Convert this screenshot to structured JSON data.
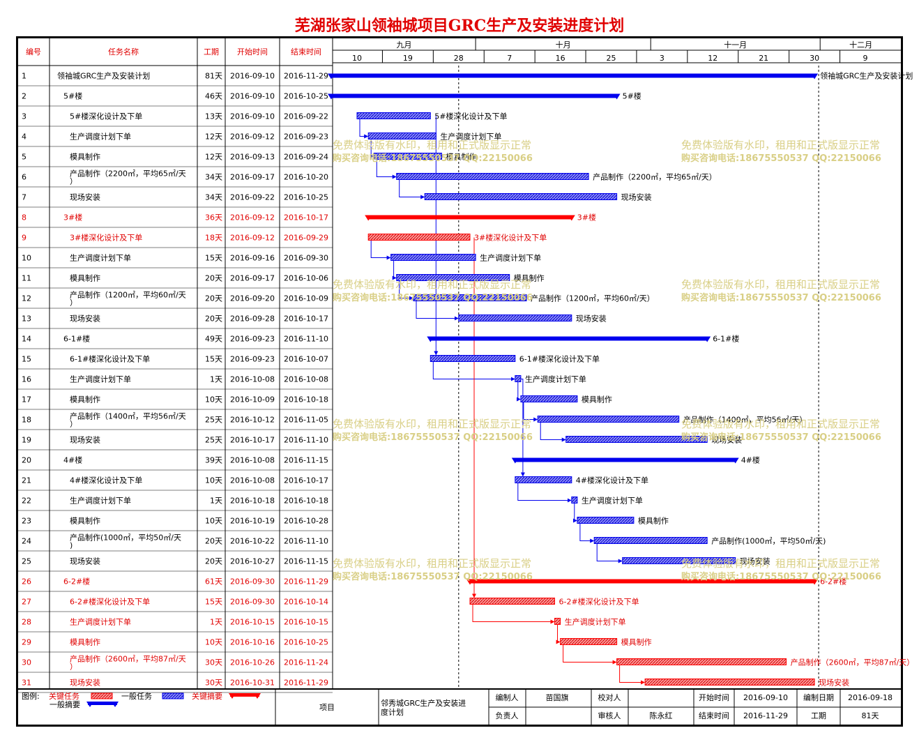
{
  "title": "芜湖张家山领袖城项目GRC生产及安装进度计划",
  "table_headers": {
    "id": "编号",
    "name": "任务名称",
    "duration": "工期",
    "start": "开始时间",
    "end": "结束时间"
  },
  "timeline": {
    "months": [
      "九月",
      "十月",
      "十一月",
      "十二月"
    ],
    "days": [
      "10",
      "19",
      "28",
      "7",
      "16",
      "25",
      "3",
      "12",
      "21",
      "30",
      "9"
    ]
  },
  "watermark": {
    "line1": "免费体验版有水印，租用和正式版显示正常",
    "line2": "购买咨询电话:18675550537 QQ:22150066"
  },
  "colors": {
    "critical": "#ff0000",
    "normal": "#0000ee",
    "critical_text": "#e00000"
  },
  "chart_data": {
    "type": "gantt",
    "title": "芜湖张家山领袖城项目GRC生产及安装进度计划",
    "x_range": [
      "2016-09-06",
      "2016-12-14"
    ],
    "today_marker": "2016-09-28",
    "tasks": [
      {
        "id": "1",
        "name": "领袖城GRC生产及安装计划",
        "duration": "81天",
        "start": "2016-09-10",
        "end": "2016-11-29",
        "level": 0,
        "kind": "summary",
        "critical": false,
        "label": "领袖城GRC生产及安装计划"
      },
      {
        "id": "2",
        "name": "5#楼",
        "duration": "46天",
        "start": "2016-09-10",
        "end": "2016-10-25",
        "level": 1,
        "kind": "summary",
        "critical": false,
        "label": "5#楼"
      },
      {
        "id": "3",
        "name": "5#楼深化设计及下单",
        "duration": "13天",
        "start": "2016-09-10",
        "end": "2016-09-22",
        "level": 2,
        "kind": "task",
        "critical": false,
        "label": "5#楼深化设计及下单"
      },
      {
        "id": "4",
        "name": "生产调度计划下单",
        "duration": "12天",
        "start": "2016-09-12",
        "end": "2016-09-23",
        "level": 2,
        "kind": "task",
        "critical": false,
        "label": "生产调度计划下单"
      },
      {
        "id": "5",
        "name": "模具制作",
        "duration": "12天",
        "start": "2016-09-13",
        "end": "2016-09-24",
        "level": 2,
        "kind": "task",
        "critical": false,
        "label": "模具制作"
      },
      {
        "id": "6",
        "name": "产品制作（2200㎡，平均65㎡/天）",
        "duration": "34天",
        "start": "2016-09-17",
        "end": "2016-10-20",
        "level": 2,
        "kind": "task",
        "critical": false,
        "label": "产品制作（2200㎡，平均65㎡/天）"
      },
      {
        "id": "7",
        "name": "现场安装",
        "duration": "34天",
        "start": "2016-09-22",
        "end": "2016-10-25",
        "level": 2,
        "kind": "task",
        "critical": false,
        "label": "现场安装"
      },
      {
        "id": "8",
        "name": "3#楼",
        "duration": "36天",
        "start": "2016-09-12",
        "end": "2016-10-17",
        "level": 1,
        "kind": "summary",
        "critical": true,
        "label": "3#楼"
      },
      {
        "id": "9",
        "name": "3#楼深化设计及下单",
        "duration": "18天",
        "start": "2016-09-12",
        "end": "2016-09-29",
        "level": 2,
        "kind": "task",
        "critical": true,
        "label": "3#楼深化设计及下单"
      },
      {
        "id": "10",
        "name": "生产调度计划下单",
        "duration": "15天",
        "start": "2016-09-16",
        "end": "2016-09-30",
        "level": 2,
        "kind": "task",
        "critical": false,
        "label": "生产调度计划下单"
      },
      {
        "id": "11",
        "name": "模具制作",
        "duration": "20天",
        "start": "2016-09-17",
        "end": "2016-10-06",
        "level": 2,
        "kind": "task",
        "critical": false,
        "label": "模具制作"
      },
      {
        "id": "12",
        "name": "产品制作（1200㎡，平均60㎡/天）",
        "duration": "20天",
        "start": "2016-09-20",
        "end": "2016-10-09",
        "level": 2,
        "kind": "task",
        "critical": false,
        "label": "产品制作（1200㎡，平均60㎡/天）"
      },
      {
        "id": "13",
        "name": "现场安装",
        "duration": "20天",
        "start": "2016-09-28",
        "end": "2016-10-17",
        "level": 2,
        "kind": "task",
        "critical": false,
        "label": "现场安装"
      },
      {
        "id": "14",
        "name": "6-1#楼",
        "duration": "49天",
        "start": "2016-09-23",
        "end": "2016-11-10",
        "level": 1,
        "kind": "summary",
        "critical": false,
        "label": "6-1#楼"
      },
      {
        "id": "15",
        "name": "6-1#楼深化设计及下单",
        "duration": "15天",
        "start": "2016-09-23",
        "end": "2016-10-07",
        "level": 2,
        "kind": "task",
        "critical": false,
        "label": "6-1#楼深化设计及下单"
      },
      {
        "id": "16",
        "name": "生产调度计划下单",
        "duration": "1天",
        "start": "2016-10-08",
        "end": "2016-10-08",
        "level": 2,
        "kind": "task",
        "critical": false,
        "label": "生产调度计划下单"
      },
      {
        "id": "17",
        "name": "模具制作",
        "duration": "10天",
        "start": "2016-10-09",
        "end": "2016-10-18",
        "level": 2,
        "kind": "task",
        "critical": false,
        "label": "模具制作"
      },
      {
        "id": "18",
        "name": "产品制作（1400㎡，平均56㎡/天）",
        "duration": "25天",
        "start": "2016-10-12",
        "end": "2016-11-05",
        "level": 2,
        "kind": "task",
        "critical": false,
        "label": "产品制作（1400㎡，平均56㎡/天）"
      },
      {
        "id": "19",
        "name": "现场安装",
        "duration": "25天",
        "start": "2016-10-17",
        "end": "2016-11-10",
        "level": 2,
        "kind": "task",
        "critical": false,
        "label": "现场安装"
      },
      {
        "id": "20",
        "name": "4#楼",
        "duration": "39天",
        "start": "2016-10-08",
        "end": "2016-11-15",
        "level": 1,
        "kind": "summary",
        "critical": false,
        "label": "4#楼"
      },
      {
        "id": "21",
        "name": "4#楼深化设计及下单",
        "duration": "10天",
        "start": "2016-10-08",
        "end": "2016-10-17",
        "level": 2,
        "kind": "task",
        "critical": false,
        "label": "4#楼深化设计及下单"
      },
      {
        "id": "22",
        "name": "生产调度计划下单",
        "duration": "1天",
        "start": "2016-10-18",
        "end": "2016-10-18",
        "level": 2,
        "kind": "task",
        "critical": false,
        "label": "生产调度计划下单"
      },
      {
        "id": "23",
        "name": "模具制作",
        "duration": "10天",
        "start": "2016-10-19",
        "end": "2016-10-28",
        "level": 2,
        "kind": "task",
        "critical": false,
        "label": "模具制作"
      },
      {
        "id": "24",
        "name": "产品制作(1000㎡，平均50㎡/天)",
        "duration": "20天",
        "start": "2016-10-22",
        "end": "2016-11-10",
        "level": 2,
        "kind": "task",
        "critical": false,
        "label": "产品制作(1000㎡，平均50㎡/天)"
      },
      {
        "id": "25",
        "name": "现场安装",
        "duration": "20天",
        "start": "2016-10-27",
        "end": "2016-11-15",
        "level": 2,
        "kind": "task",
        "critical": false,
        "label": "现场安装"
      },
      {
        "id": "26",
        "name": "6-2#楼",
        "duration": "61天",
        "start": "2016-09-30",
        "end": "2016-11-29",
        "level": 1,
        "kind": "summary",
        "critical": true,
        "label": "6-2#楼"
      },
      {
        "id": "27",
        "name": "6-2#楼深化设计及下单",
        "duration": "15天",
        "start": "2016-09-30",
        "end": "2016-10-14",
        "level": 2,
        "kind": "task",
        "critical": true,
        "label": "6-2#楼深化设计及下单"
      },
      {
        "id": "28",
        "name": "生产调度计划下单",
        "duration": "1天",
        "start": "2016-10-15",
        "end": "2016-10-15",
        "level": 2,
        "kind": "task",
        "critical": true,
        "label": "生产调度计划下单"
      },
      {
        "id": "29",
        "name": "模具制作",
        "duration": "10天",
        "start": "2016-10-16",
        "end": "2016-10-25",
        "level": 2,
        "kind": "task",
        "critical": true,
        "label": "模具制作"
      },
      {
        "id": "30",
        "name": "产品制作（2600㎡，平均87㎡/天）",
        "duration": "30天",
        "start": "2016-10-26",
        "end": "2016-11-24",
        "level": 2,
        "kind": "task",
        "critical": true,
        "label": "产品制作（2600㎡，平均87㎡/天）"
      },
      {
        "id": "31",
        "name": "现场安装",
        "duration": "30天",
        "start": "2016-10-31",
        "end": "2016-11-29",
        "level": 2,
        "kind": "task",
        "critical": true,
        "label": "现场安装"
      }
    ]
  },
  "footer": {
    "legend_label": "图例:",
    "legend_critical_task": "关键任务",
    "legend_normal_task": "一般任务",
    "legend_critical_summary": "关键摘要",
    "legend_normal_summary": "一般摘要",
    "project_label": "项目",
    "project_name": "邻秀城GRC生产及安装进度计划",
    "editor_label": "编制人",
    "editor": "苗国旗",
    "owner_label": "负责人",
    "owner": "",
    "checker_label": "校对人",
    "checker": "",
    "reviewer_label": "审核人",
    "reviewer": "陈永红",
    "start_label": "开始时间",
    "start": "2016-09-10",
    "end_label": "结束时间",
    "end": "2016-11-29",
    "date_label": "编制日期",
    "date": "2016-09-18",
    "duration_label": "工期",
    "duration": "81天"
  }
}
